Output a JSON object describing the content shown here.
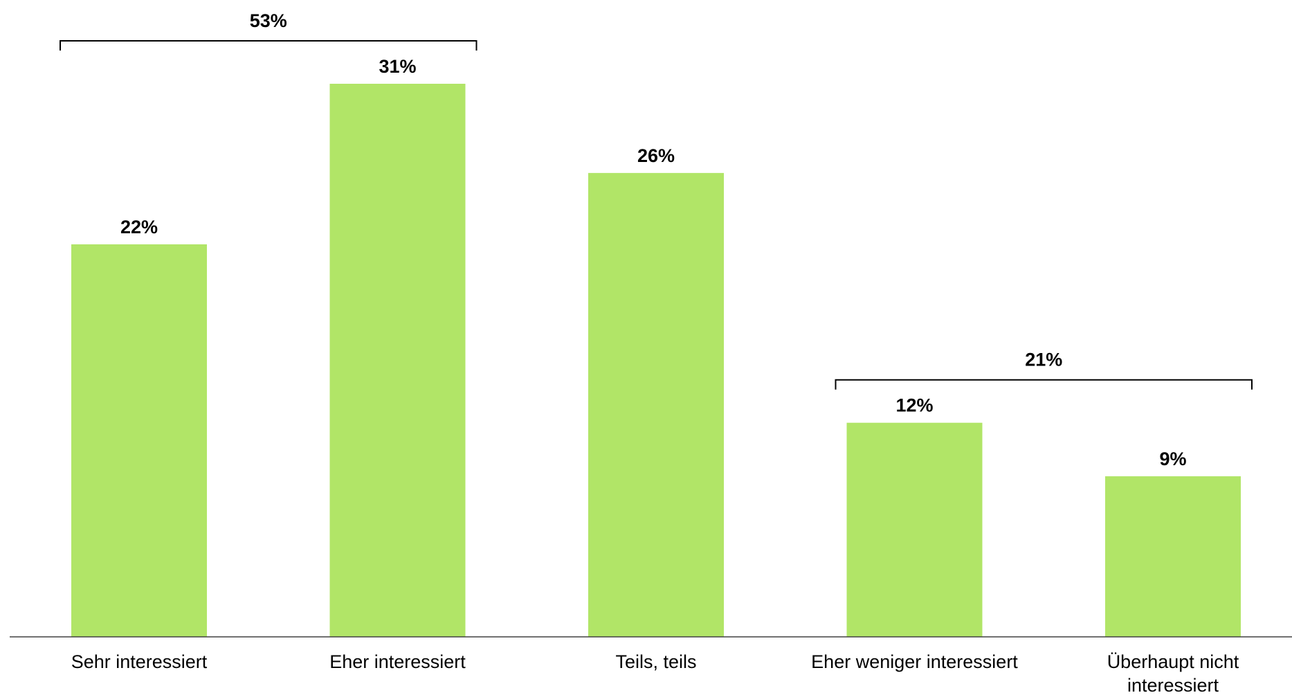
{
  "chart_data": {
    "type": "bar",
    "categories": [
      [
        "Sehr interessiert"
      ],
      [
        "Eher interessiert"
      ],
      [
        "Teils, teils"
      ],
      [
        "Eher weniger interessiert"
      ],
      [
        "Überhaupt nicht",
        "interessiert"
      ]
    ],
    "values": [
      22,
      31,
      26,
      12,
      9
    ],
    "value_labels": [
      "22%",
      "31%",
      "26%",
      "12%",
      "9%"
    ],
    "groups": [
      {
        "label": "53%",
        "from": 0,
        "to": 1
      },
      {
        "label": "21%",
        "from": 3,
        "to": 4
      }
    ],
    "bar_color": "#b1e567",
    "axis_color": "#404040",
    "ylim": [
      0,
      31
    ],
    "title": "",
    "xlabel": "",
    "ylabel": ""
  }
}
